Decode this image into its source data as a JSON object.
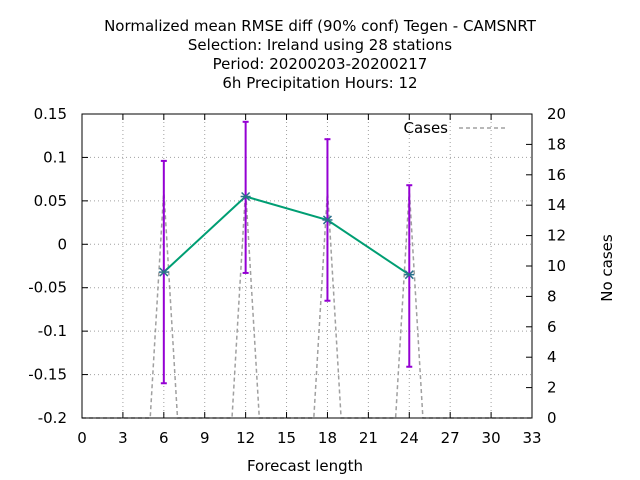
{
  "chart_data": {
    "type": "line",
    "title_lines": [
      "Normalized mean RMSE diff (90% conf) Tegen - CAMSNRT",
      "Selection: Ireland using    28 stations",
      "Period: 20200203-20200217",
      "6h Precipitation   Hours:  12"
    ],
    "xlabel": "Forecast length",
    "ylabel": "",
    "y2label": "No cases",
    "xlim": [
      0,
      33
    ],
    "ylim": [
      -0.2,
      0.15
    ],
    "y2lim": [
      0,
      20
    ],
    "x_ticks": [
      0,
      3,
      6,
      9,
      12,
      15,
      18,
      21,
      24,
      27,
      30,
      33
    ],
    "y_ticks": [
      -0.2,
      -0.15,
      -0.1,
      -0.05,
      0,
      0.05,
      0.1,
      0.15
    ],
    "y_tick_labels": [
      "-0.2",
      "-0.15",
      "-0.1",
      "-0.05",
      "0",
      "0.05",
      "0.1",
      "0.15"
    ],
    "y2_ticks": [
      0,
      2,
      4,
      6,
      8,
      10,
      12,
      14,
      16,
      18,
      20
    ],
    "grid": true,
    "legend_position": "top-right",
    "series": [
      {
        "x": [
          6,
          12,
          18,
          24
        ],
        "y": [
          -0.032,
          0.055,
          0.028,
          -0.035
        ],
        "err_low": [
          -0.16,
          -0.033,
          -0.065,
          -0.141
        ],
        "err_high": [
          0.096,
          0.141,
          0.121,
          0.068
        ],
        "color": "#009e73",
        "error_color": "#9400d3",
        "axis": "left"
      },
      {
        "name": "Cases",
        "x": [
          0,
          1,
          2,
          3,
          4,
          5,
          6,
          7,
          8,
          9,
          10,
          11,
          12,
          13,
          14,
          15,
          16,
          17,
          18,
          19,
          20,
          21,
          22,
          23,
          24,
          25,
          26,
          27,
          28,
          29,
          30,
          31,
          32,
          33
        ],
        "y": [
          0,
          0,
          0,
          0,
          0,
          0,
          15,
          0,
          0,
          0,
          0,
          0,
          15,
          0,
          0,
          0,
          0,
          0,
          15,
          0,
          0,
          0,
          0,
          0,
          15,
          0,
          0,
          0,
          0,
          0,
          0,
          0,
          0,
          0
        ],
        "color": "#a0a0a0",
        "dash": true,
        "axis": "right"
      }
    ]
  }
}
